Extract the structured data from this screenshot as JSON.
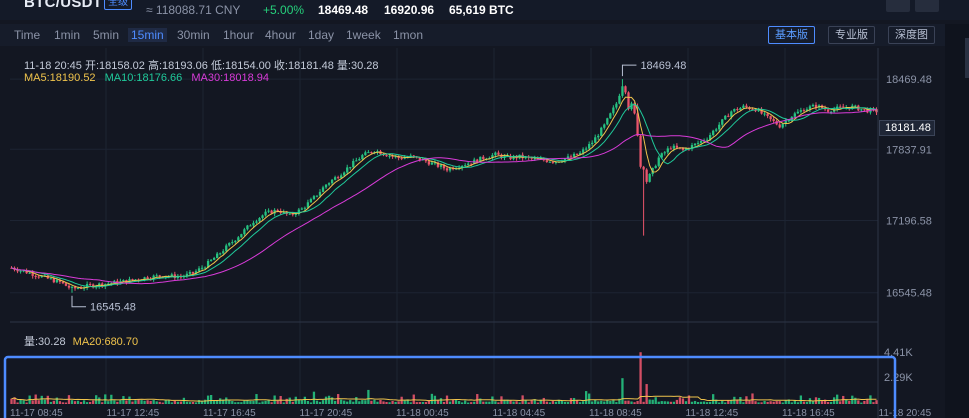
{
  "header": {
    "pair": "BTC/USDT",
    "pair_tag": "全级",
    "cny_price": "≈ 118088.71 CNY",
    "change": "+5.00%",
    "high": "18469.48",
    "low": "16920.96",
    "volume": "65,619 BTC"
  },
  "intervals": [
    "Time",
    "1min",
    "5min",
    "15min",
    "30min",
    "1hour",
    "4hour",
    "1day",
    "1week",
    "1mon"
  ],
  "active_interval": "15min",
  "versions": [
    {
      "label": "基本版",
      "active": true
    },
    {
      "label": "专业版",
      "active": false
    },
    {
      "label": "深度图",
      "active": false
    }
  ],
  "candle_info": {
    "text": "11-18 20:45  开:18158.02  高:18193.06  低:18154.00  收:18181.48  量:30.28"
  },
  "ma_legend": {
    "ma5": "MA5:18190.52",
    "ma10": "MA10:18176.66",
    "ma30": "MA30:18018.94"
  },
  "volume_legend": {
    "vol": "量:30.28",
    "ma20": "MA20:680.70"
  },
  "current_price_tag": "18181.48",
  "colors": {
    "up": "#26c281",
    "down": "#e9546b",
    "ma5": "#f0c44c",
    "ma10": "#1fc99a",
    "ma30": "#d93bd9",
    "accent": "#4e8cff"
  },
  "chart_data": {
    "type": "candlestick",
    "price_axis": {
      "ticks": [
        16545.48,
        17196.58,
        17837.91,
        18469.48
      ],
      "min": 16300,
      "max": 18750
    },
    "volume_axis": {
      "ticks": [
        "2.29K",
        "4.41K"
      ],
      "max": 4600
    },
    "x_ticks": [
      "11-17 08:45",
      "11-17 12:45",
      "11-17 16:45",
      "11-17 20:45",
      "11-18 00:45",
      "11-18 04:45",
      "11-18 08:45",
      "11-18 12:45",
      "11-18 16:45",
      "11-18 20:45"
    ],
    "annotations": [
      {
        "label": "18469.48",
        "type": "max"
      },
      {
        "label": "16545.48",
        "type": "min"
      }
    ],
    "anchors": [
      [
        0,
        16770
      ],
      [
        4,
        16740
      ],
      [
        10,
        16690
      ],
      [
        16,
        16640
      ],
      [
        20,
        16580
      ],
      [
        26,
        16610
      ],
      [
        32,
        16630
      ],
      [
        38,
        16650
      ],
      [
        44,
        16680
      ],
      [
        50,
        16700
      ],
      [
        56,
        16690
      ],
      [
        60,
        16720
      ],
      [
        64,
        16790
      ],
      [
        68,
        16880
      ],
      [
        72,
        16980
      ],
      [
        76,
        17080
      ],
      [
        80,
        17190
      ],
      [
        84,
        17260
      ],
      [
        88,
        17290
      ],
      [
        92,
        17240
      ],
      [
        96,
        17300
      ],
      [
        100,
        17400
      ],
      [
        104,
        17520
      ],
      [
        108,
        17600
      ],
      [
        112,
        17690
      ],
      [
        116,
        17780
      ],
      [
        120,
        17830
      ],
      [
        124,
        17790
      ],
      [
        128,
        17760
      ],
      [
        132,
        17770
      ],
      [
        136,
        17740
      ],
      [
        140,
        17700
      ],
      [
        144,
        17660
      ],
      [
        148,
        17690
      ],
      [
        152,
        17720
      ],
      [
        156,
        17760
      ],
      [
        160,
        17790
      ],
      [
        164,
        17760
      ],
      [
        168,
        17770
      ],
      [
        172,
        17750
      ],
      [
        176,
        17740
      ],
      [
        180,
        17730
      ],
      [
        184,
        17760
      ],
      [
        188,
        17800
      ],
      [
        192,
        17900
      ],
      [
        196,
        18050
      ],
      [
        200,
        18250
      ],
      [
        202,
        18420
      ],
      [
        204,
        18320
      ],
      [
        206,
        18150
      ],
      [
        208,
        17800
      ],
      [
        210,
        17550
      ],
      [
        212,
        17650
      ],
      [
        214,
        17760
      ],
      [
        218,
        17860
      ],
      [
        222,
        17830
      ],
      [
        226,
        17880
      ],
      [
        230,
        17940
      ],
      [
        234,
        18060
      ],
      [
        238,
        18180
      ],
      [
        242,
        18220
      ],
      [
        246,
        18200
      ],
      [
        250,
        18120
      ],
      [
        254,
        18050
      ],
      [
        258,
        18140
      ],
      [
        262,
        18200
      ],
      [
        266,
        18230
      ],
      [
        270,
        18190
      ],
      [
        274,
        18210
      ],
      [
        278,
        18220
      ],
      [
        282,
        18190
      ],
      [
        286,
        18181
      ]
    ],
    "volume_spikes": [
      [
        208,
        4410
      ],
      [
        202,
        2200
      ],
      [
        210,
        1700
      ],
      [
        190,
        1100
      ],
      [
        118,
        1200
      ],
      [
        100,
        1050
      ],
      [
        245,
        900
      ]
    ],
    "candle_count": 287
  }
}
